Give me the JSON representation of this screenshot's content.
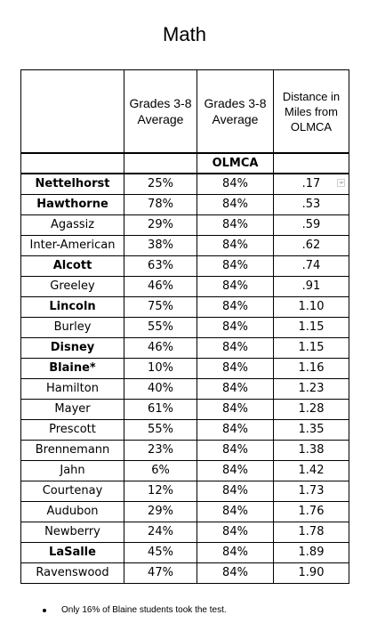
{
  "page": {
    "title": "Math"
  },
  "table": {
    "headers": {
      "school": "",
      "grades_avg_1": "Grades 3-8 Average",
      "grades_avg_2": "Grades 3-8 Average",
      "distance": "Distance in Miles from OLMCA"
    },
    "olmca_label": "OLMCA",
    "rows": [
      {
        "school": "Nettelhorst",
        "school_avg": "25%",
        "olmca_avg": "84%",
        "distance": ".17",
        "bold": true
      },
      {
        "school": "Hawthorne",
        "school_avg": "78%",
        "olmca_avg": "84%",
        "distance": ".53",
        "bold": true
      },
      {
        "school": "Agassiz",
        "school_avg": "29%",
        "olmca_avg": "84%",
        "distance": ".59",
        "bold": false
      },
      {
        "school": "Inter-American",
        "school_avg": "38%",
        "olmca_avg": "84%",
        "distance": ".62",
        "bold": false
      },
      {
        "school": "Alcott",
        "school_avg": "63%",
        "olmca_avg": "84%",
        "distance": ".74",
        "bold": true
      },
      {
        "school": "Greeley",
        "school_avg": "46%",
        "olmca_avg": "84%",
        "distance": ".91",
        "bold": false
      },
      {
        "school": "Lincoln",
        "school_avg": "75%",
        "olmca_avg": "84%",
        "distance": "1.10",
        "bold": true
      },
      {
        "school": "Burley",
        "school_avg": "55%",
        "olmca_avg": "84%",
        "distance": "1.15",
        "bold": false
      },
      {
        "school": "Disney",
        "school_avg": "46%",
        "olmca_avg": "84%",
        "distance": "1.15",
        "bold": true
      },
      {
        "school": "Blaine*",
        "school_avg": "10%",
        "olmca_avg": "84%",
        "distance": "1.16",
        "bold": true
      },
      {
        "school": "Hamilton",
        "school_avg": "40%",
        "olmca_avg": "84%",
        "distance": "1.23",
        "bold": false
      },
      {
        "school": "Mayer",
        "school_avg": "61%",
        "olmca_avg": "84%",
        "distance": "1.28",
        "bold": false
      },
      {
        "school": "Prescott",
        "school_avg": "55%",
        "olmca_avg": "84%",
        "distance": "1.35",
        "bold": false
      },
      {
        "school": "Brennemann",
        "school_avg": "23%",
        "olmca_avg": "84%",
        "distance": "1.38",
        "bold": false
      },
      {
        "school": "Jahn",
        "school_avg": "6%",
        "olmca_avg": "84%",
        "distance": "1.42",
        "bold": false
      },
      {
        "school": "Courtenay",
        "school_avg": "12%",
        "olmca_avg": "84%",
        "distance": "1.73",
        "bold": false
      },
      {
        "school": "Audubon",
        "school_avg": "29%",
        "olmca_avg": "84%",
        "distance": "1.76",
        "bold": false
      },
      {
        "school": "Newberry",
        "school_avg": "24%",
        "olmca_avg": "84%",
        "distance": "1.78",
        "bold": false
      },
      {
        "school": "LaSalle",
        "school_avg": "45%",
        "olmca_avg": "84%",
        "distance": "1.89",
        "bold": true
      },
      {
        "school": "Ravenswood",
        "school_avg": "47%",
        "olmca_avg": "84%",
        "distance": "1.90",
        "bold": false
      }
    ],
    "filter_icon": "filter-dropdown-icon"
  },
  "footnote": {
    "text": "Only 16% of Blaine students took the test."
  }
}
